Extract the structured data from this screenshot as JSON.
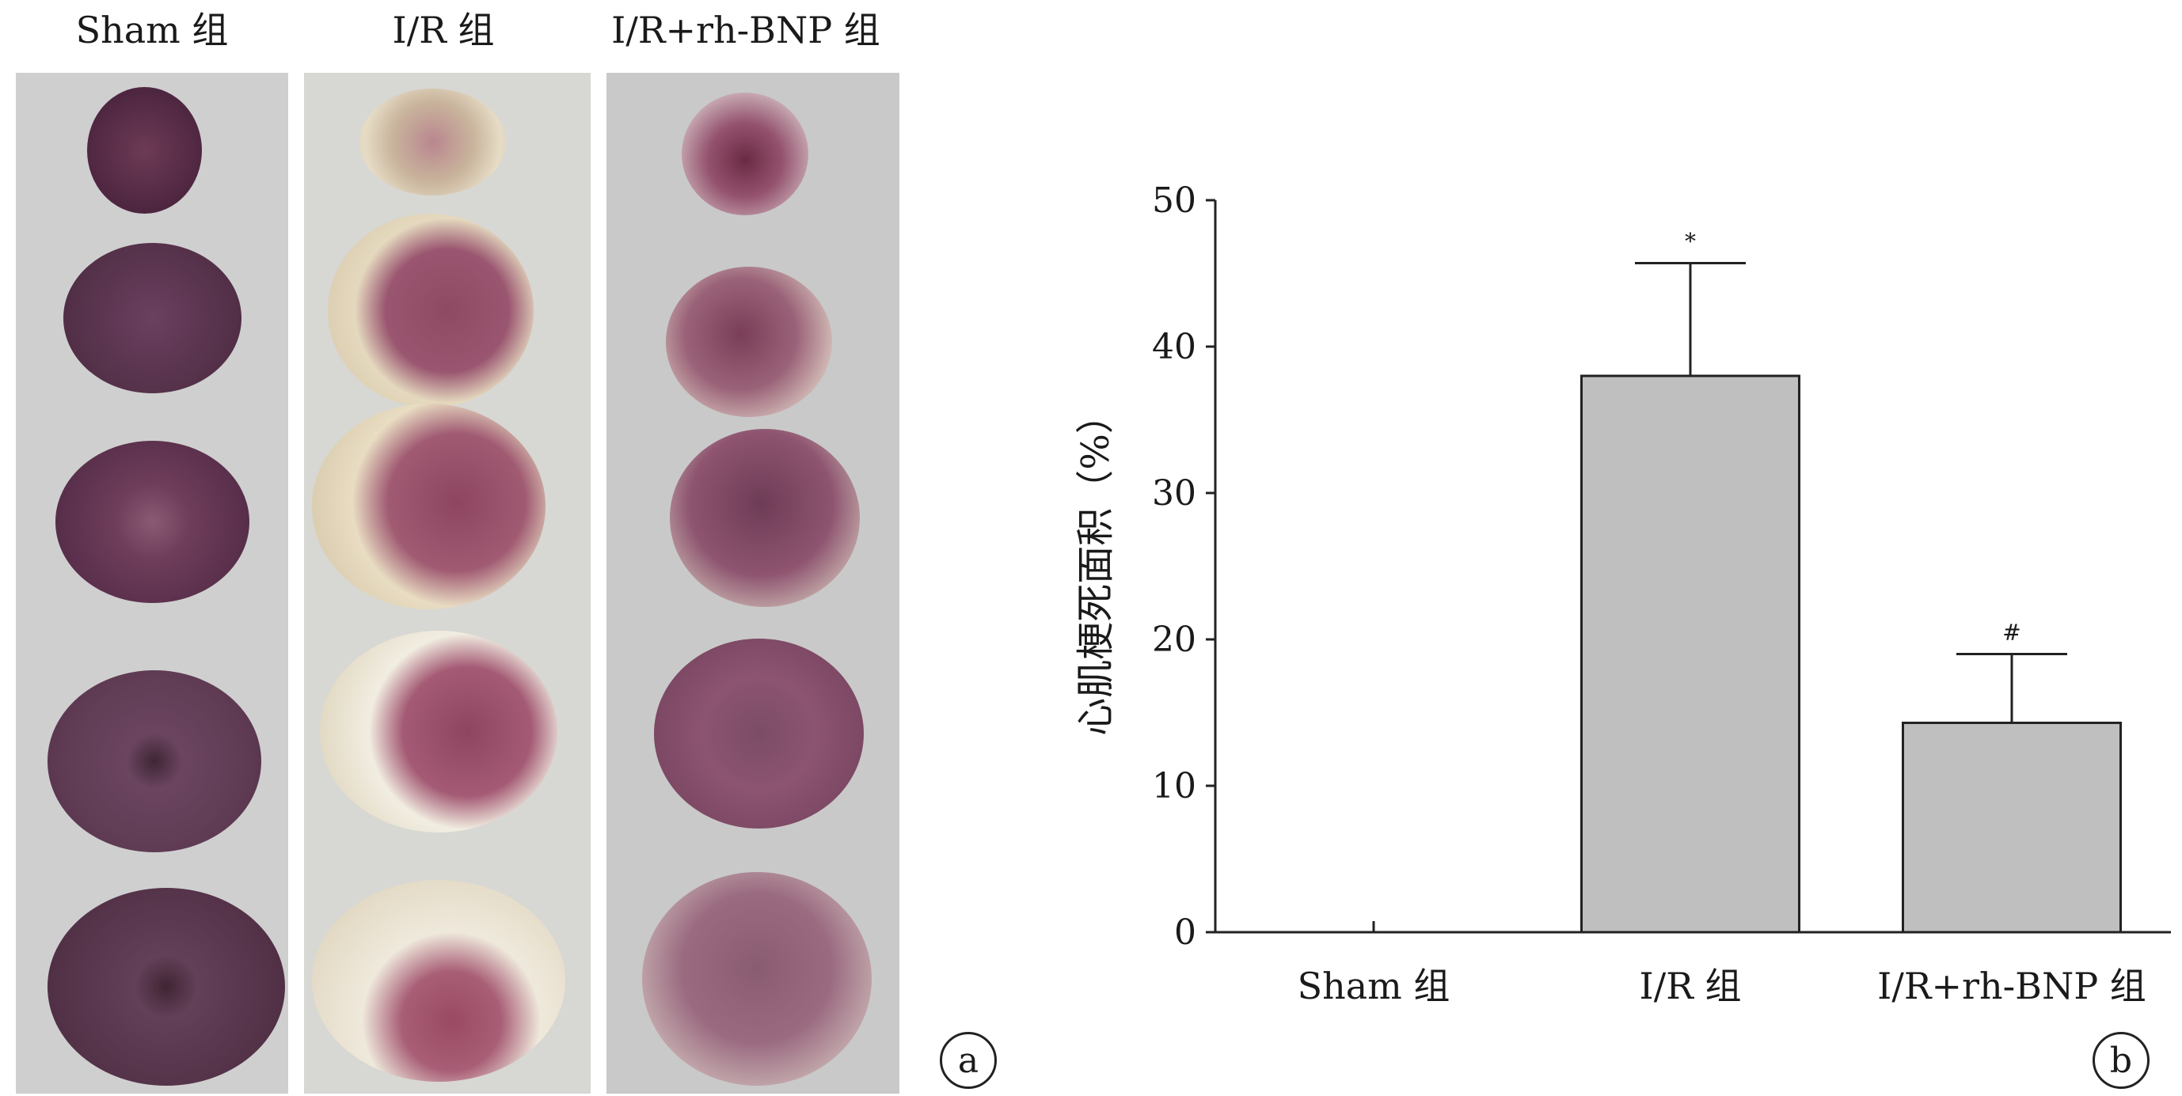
{
  "photo_panel": {
    "group_titles": [
      "Sham 组",
      "I/R 组",
      "I/R+rh-BNP 组"
    ],
    "panel_label": "a"
  },
  "chart_panel": {
    "panel_label": "b"
  },
  "chart_data": {
    "type": "bar",
    "categories": [
      "Sham 组",
      "I/R 组",
      "I/R+rh-BNP 组"
    ],
    "values": [
      0,
      38,
      14.3
    ],
    "error_upper": [
      0,
      45.7,
      19
    ],
    "significance_marks": [
      "",
      "*",
      "#"
    ],
    "ylabel": "心肌梗死面积（%）",
    "xlabel": "",
    "ylim": [
      0,
      50
    ],
    "yticks": [
      0,
      10,
      20,
      30,
      40,
      50
    ],
    "bar_color": "#bfbfbf",
    "grid": false
  }
}
